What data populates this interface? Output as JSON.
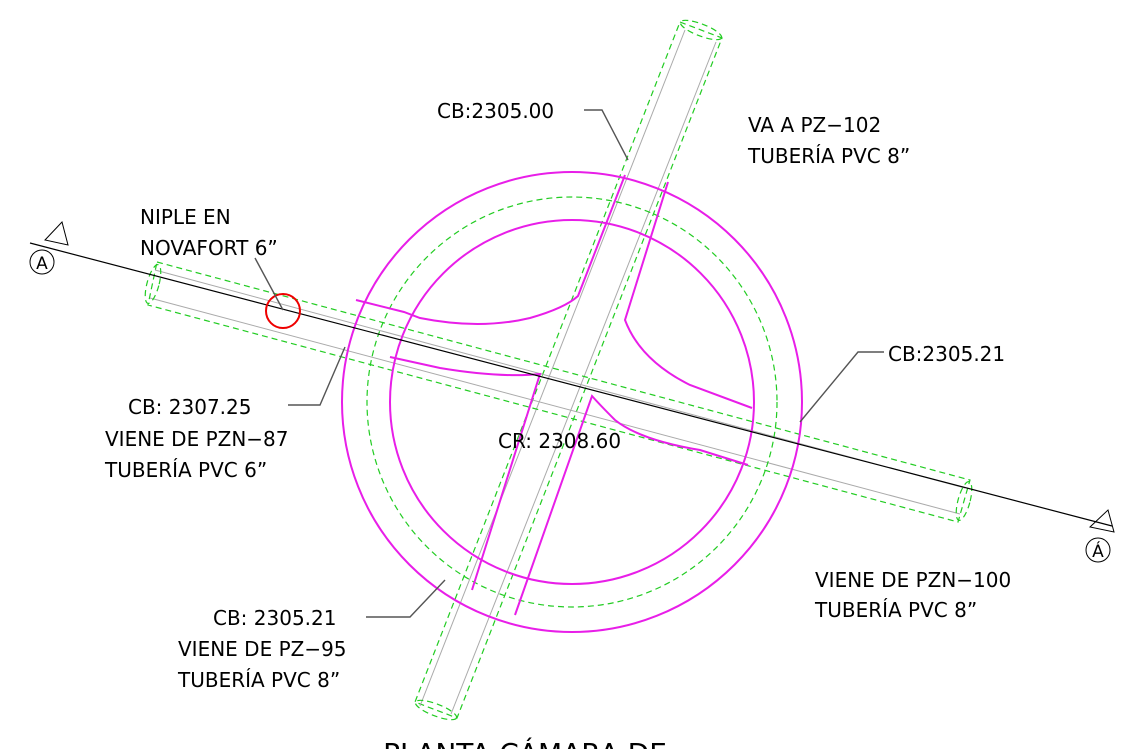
{
  "labels": [
    {
      "lines": [
        "CB:2305.00"
      ]
    },
    {
      "lines": [
        "VA A PZ−102",
        "TUBERÍA PVC 8”"
      ]
    },
    {
      "lines": [
        "NIPLE EN",
        "NOVAFORT 6”"
      ]
    },
    {
      "lines": [
        "CB: 2307.25",
        "VIENE DE PZN−87",
        "TUBERÍA PVC 6”"
      ]
    },
    {
      "lines": [
        "CR: 2308.60"
      ]
    },
    {
      "lines": [
        "CB:2305.21"
      ]
    },
    {
      "lines": [
        "VIENE DE PZN−100",
        "TUBERÍA PVC 8”"
      ]
    },
    {
      "lines": [
        "CB: 2305.21",
        "VIENE DE PZ−95",
        "TUBERÍA PVC 8”"
      ]
    }
  ],
  "section_marks": [
    "A",
    "Á"
  ],
  "title": "PLANTA CÁMARA DE"
}
